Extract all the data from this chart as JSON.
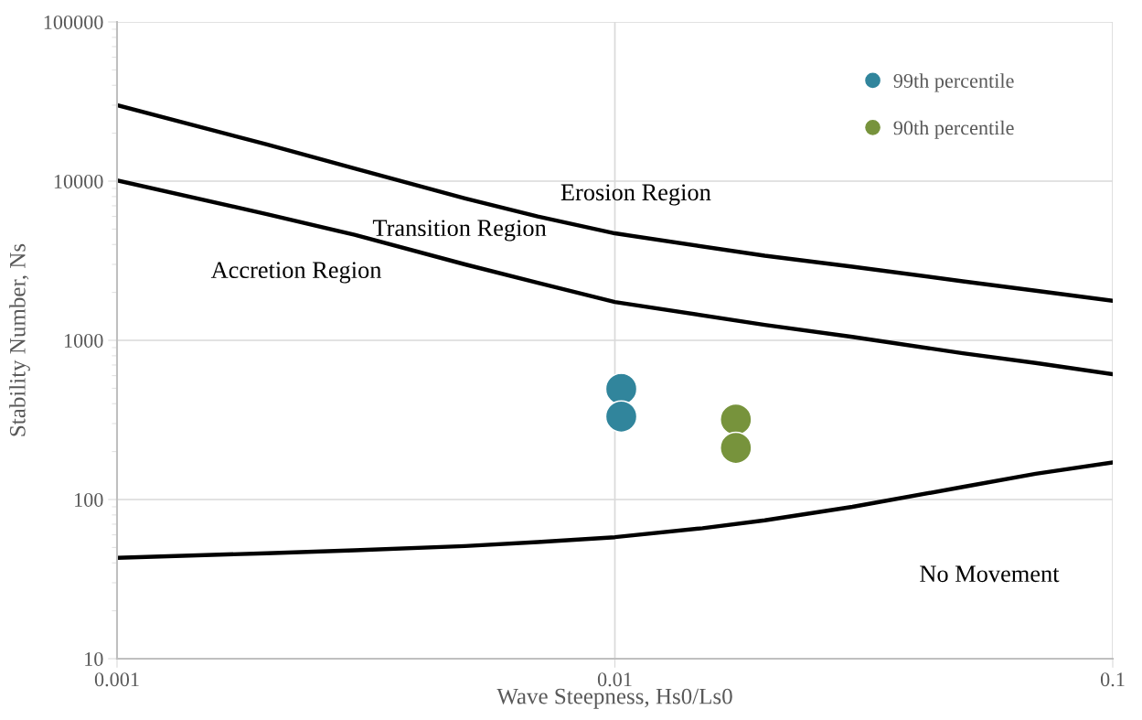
{
  "chart_data": {
    "type": "scatter",
    "xlabel": "Wave Steepness, Hs0/Ls0",
    "ylabel": "Stability Number, Ns",
    "log": "xy",
    "xlim": [
      0.001,
      0.1
    ],
    "xticks": [
      0.001,
      0.01,
      0.1
    ],
    "ylim": [
      10,
      100000
    ],
    "yticks": [
      10,
      100,
      1000,
      10000,
      100000
    ],
    "grid": true,
    "legend": "top right",
    "series": [
      {
        "type": "line",
        "color": "#000000",
        "x": [
          0.001,
          0.002,
          0.003,
          0.005,
          0.007,
          0.01,
          0.02,
          0.03,
          0.05,
          0.07,
          0.1
        ],
        "values": [
          30000,
          17000,
          12000,
          7800,
          6000,
          4700,
          3400,
          2900,
          2350,
          2050,
          1770
        ]
      },
      {
        "type": "line",
        "color": "#000000",
        "x": [
          0.001,
          0.002,
          0.003,
          0.005,
          0.007,
          0.01,
          0.02,
          0.03,
          0.05,
          0.07,
          0.1
        ],
        "values": [
          10100,
          6200,
          4600,
          3000,
          2300,
          1740,
          1250,
          1050,
          830,
          720,
          612
        ]
      },
      {
        "type": "line",
        "color": "#000000",
        "x": [
          0.001,
          0.002,
          0.003,
          0.005,
          0.007,
          0.01,
          0.015,
          0.02,
          0.03,
          0.05,
          0.07,
          0.1
        ],
        "values": [
          43,
          46,
          48,
          51,
          54,
          58,
          66,
          74,
          90,
          120,
          145,
          171
        ]
      },
      {
        "name": "99th percentile",
        "color": "#31859c",
        "marker": "circle",
        "x": [
          0.0103,
          0.0103
        ],
        "values": [
          495,
          332
        ]
      },
      {
        "name": "90th percentile",
        "color": "#77933c",
        "marker": "circle",
        "x": [
          0.0175,
          0.0175
        ],
        "values": [
          318,
          211
        ]
      }
    ],
    "annotations": [
      "Erosion Region",
      "Transition Region",
      "Accretion Region",
      "No Movement"
    ]
  }
}
